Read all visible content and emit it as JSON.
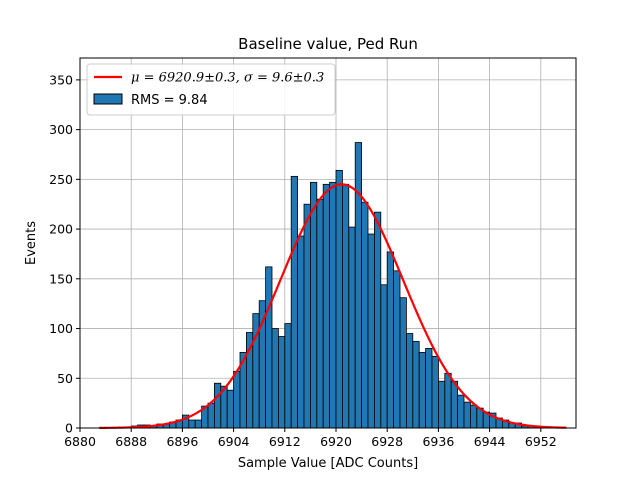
{
  "chart_data": {
    "type": "bar",
    "title": "Baseline value, Ped Run",
    "xlabel": "Sample Value [ADC Counts]",
    "ylabel": "Events",
    "xlim": [
      6880,
      6957.5
    ],
    "ylim": [
      0,
      372
    ],
    "xticks": [
      6880,
      6888,
      6896,
      6904,
      6912,
      6920,
      6928,
      6936,
      6944,
      6952
    ],
    "yticks": [
      0,
      50,
      100,
      150,
      200,
      250,
      300,
      350
    ],
    "grid": true,
    "legend_position": "top-left",
    "bin_start": 6883,
    "bin_width": 1,
    "values": [
      0,
      0,
      0,
      1,
      1,
      2,
      3,
      3,
      2,
      4,
      4,
      6,
      8,
      13,
      8,
      8,
      22,
      25,
      45,
      42,
      38,
      57,
      76,
      96,
      115,
      128,
      162,
      100,
      92,
      105,
      253,
      193,
      225,
      247,
      230,
      245,
      247,
      259,
      245,
      202,
      287,
      227,
      195,
      217,
      144,
      177,
      158,
      131,
      95,
      87,
      76,
      80,
      72,
      47,
      55,
      47,
      33,
      26,
      23,
      20,
      16,
      15,
      10,
      8,
      5,
      5,
      2,
      2,
      1,
      1,
      1,
      0,
      0
    ],
    "series": [
      {
        "name": "RMS = 9.84",
        "kind": "histogram",
        "color": "#1f77b4",
        "edgecolor": "#000000"
      },
      {
        "name": "$\\mu = 6920.9 \\pm 0.3, \\sigma = 9.6 \\pm 0.3$",
        "kind": "gaussian-fit",
        "mean": 6920.9,
        "sigma": 9.6,
        "amplitude": 245,
        "x_range": [
          6883,
          6956
        ],
        "color": "#ff0000"
      }
    ]
  },
  "legend": {
    "fit_prefix": "μ = 6920.9±0.3, ",
    "fit_suffix": "σ = 9.6±0.3",
    "hist_label": "RMS = 9.84"
  }
}
